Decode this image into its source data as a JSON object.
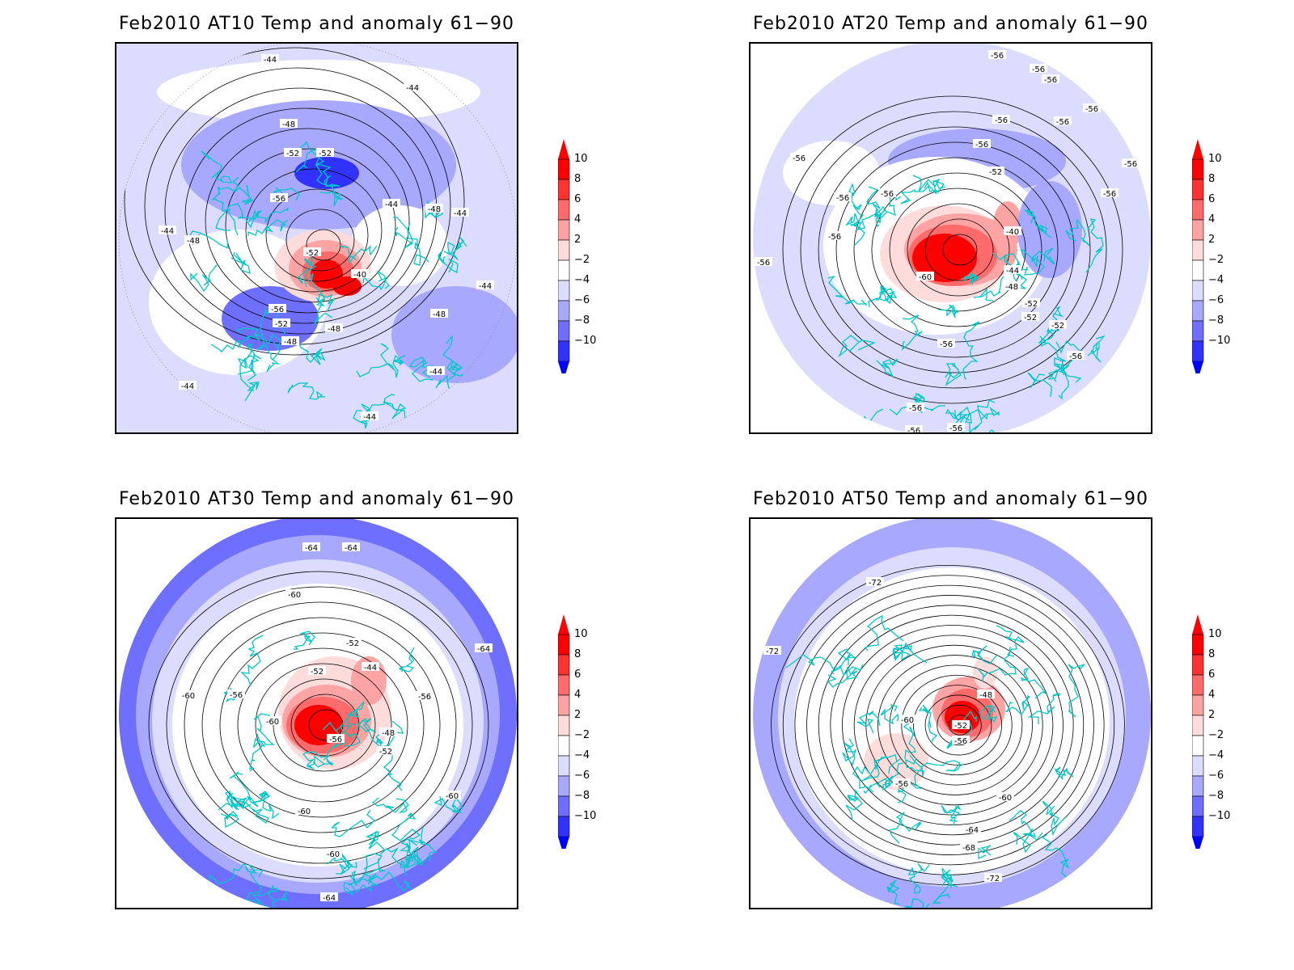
{
  "colorbar": {
    "ticks": [
      "10",
      "8",
      "6",
      "4",
      "2",
      "−2",
      "−4",
      "−6",
      "−8",
      "−10"
    ],
    "colors": [
      "#ff0000",
      "#ff3232",
      "#ff6a6a",
      "#ffa4a4",
      "#ffdcdc",
      "#ffffff",
      "#dcdcff",
      "#a8a8ff",
      "#6e6eff",
      "#3232ff",
      "#0000ff"
    ]
  },
  "coastline_color": "#00c8c8",
  "panels": [
    {
      "title": "Feb2010 AT10 Temp and anomaly 61−90",
      "labels": [
        "-44",
        "-44",
        "-48",
        "-52",
        "-52",
        "-56",
        "-44",
        "-48",
        "-44",
        "-44",
        "-48",
        "-52",
        "-40",
        "-44",
        "-56",
        "-48",
        "-52",
        "-48",
        "-48",
        "-44",
        "-44",
        "-44"
      ]
    },
    {
      "title": "Feb2010 AT20 Temp and anomaly 61−90",
      "labels": [
        "-56",
        "-56",
        "-56",
        "-56",
        "-56",
        "-56",
        "-56",
        "-56",
        "-56",
        "-52",
        "-56",
        "-56",
        "-56",
        "-56",
        "-40",
        "-56",
        "-44",
        "-60",
        "-48",
        "-52",
        "-52",
        "-52",
        "-56",
        "-56",
        "-56",
        "-56",
        "-56"
      ]
    },
    {
      "title": "Feb2010 AT30 Temp and anomaly 61−90",
      "labels": [
        "-64",
        "-64",
        "-60",
        "-52",
        "-64",
        "-52",
        "-44",
        "-60",
        "-56",
        "-56",
        "-60",
        "-48",
        "-56",
        "-52",
        "-60",
        "-60",
        "-60",
        "-64"
      ]
    },
    {
      "title": "Feb2010 AT50 Temp and anomaly 61−90",
      "labels": [
        "-72",
        "-72",
        "-48",
        "-60",
        "-52",
        "-56",
        "-56",
        "-60",
        "-64",
        "-68",
        "-72"
      ]
    }
  ]
}
